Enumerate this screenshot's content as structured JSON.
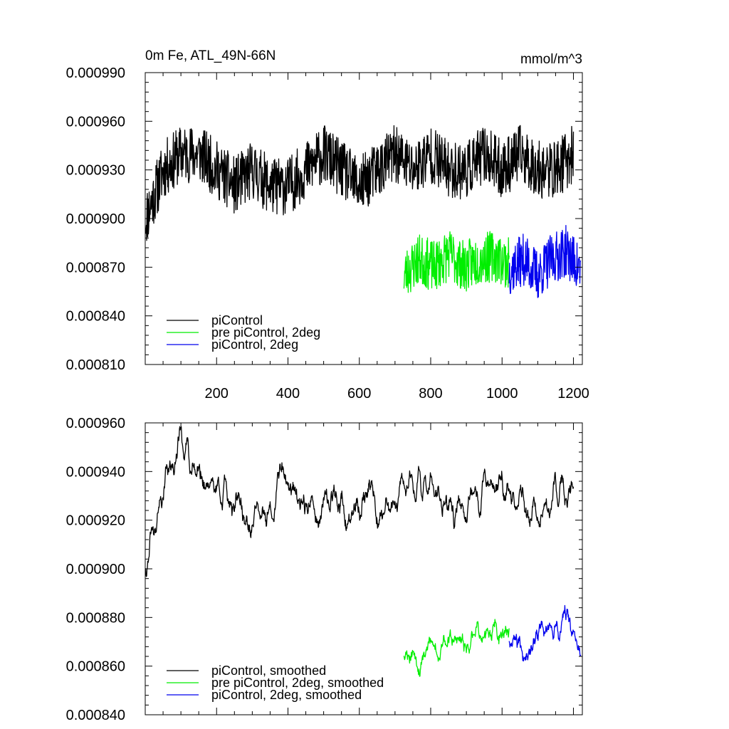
{
  "chart_data": [
    {
      "type": "line",
      "title": "0m Fe, ATL_49N-66N",
      "units": "mmol/m^3",
      "xlim": [
        0,
        1225
      ],
      "ylim": [
        0.00081,
        0.00099
      ],
      "xticks": [
        200,
        400,
        600,
        800,
        1000,
        1200
      ],
      "xtick_labels": [
        "200",
        "400",
        "600",
        "800",
        "1000",
        "1200"
      ],
      "yticks": [
        0.00081,
        0.00084,
        0.00087,
        0.0009,
        0.00093,
        0.00096,
        0.00099
      ],
      "ytick_labels": [
        "0.000810",
        "0.000840",
        "0.000870",
        "0.000900",
        "0.000930",
        "0.000960",
        "0.000990"
      ],
      "legend_position": "bottom-left",
      "series": [
        {
          "name": "piControl",
          "color": "#000000",
          "x": [
            1,
            1200
          ],
          "base": [
            0.0009,
            0.00093,
            0.00094,
            0.00094,
            0.00093,
            0.00092,
            0.00093,
            0.00092,
            0.00092,
            0.00093,
            0.00094,
            0.00093,
            0.00092,
            0.00093,
            0.00094,
            0.00093,
            0.00094,
            0.00093,
            0.00093,
            0.00094,
            0.00093,
            0.00094,
            0.00093,
            0.00093,
            0.00094
          ],
          "amplitude": 1.8e-05,
          "seed": 11
        },
        {
          "name": "pre piControl, 2deg",
          "color": "#00ee00",
          "x": [
            725,
            1020
          ],
          "base": [
            0.000865,
            0.000875,
            0.00087,
            0.000878,
            0.00087,
            0.000875,
            0.000877,
            0.000872
          ],
          "amplitude": 1.6e-05,
          "seed": 23
        },
        {
          "name": "piControl, 2deg",
          "color": "#0000ee",
          "x": [
            1020,
            1220
          ],
          "base": [
            0.000868,
            0.000875,
            0.000865,
            0.000875,
            0.00088,
            0.000868
          ],
          "amplitude": 1.6e-05,
          "seed": 37
        }
      ]
    },
    {
      "type": "line",
      "title": "",
      "units": "",
      "xlim": [
        0,
        1225
      ],
      "ylim": [
        0.00084,
        0.00096
      ],
      "xticks": [
        200,
        400,
        600,
        800,
        1000,
        1200
      ],
      "xtick_labels": [],
      "yticks": [
        0.00084,
        0.00086,
        0.00088,
        0.0009,
        0.00092,
        0.00094,
        0.00096
      ],
      "ytick_labels": [
        "0.000840",
        "0.000860",
        "0.000880",
        "0.000900",
        "0.000920",
        "0.000940",
        "0.000960"
      ],
      "legend_position": "bottom-left",
      "series": [
        {
          "name": "piControl, smoothed",
          "color": "#000000",
          "x": [
            1,
            1200
          ],
          "base": [
            0.000898,
            0.00093,
            0.000955,
            0.00094,
            0.000935,
            0.00093,
            0.00092,
            0.00092,
            0.00094,
            0.00093,
            0.00092,
            0.00093,
            0.00092,
            0.00093,
            0.00092,
            0.00093,
            0.00094,
            0.00093,
            0.00092,
            0.00093,
            0.00094,
            0.00093,
            0.000925,
            0.00092,
            0.00093,
            0.000935
          ],
          "amplitude": 9e-06,
          "seed": 41
        },
        {
          "name": "pre piControl, 2deg, smoothed",
          "color": "#00ee00",
          "x": [
            725,
            1020
          ],
          "base": [
            0.00087,
            0.000865,
            0.000868,
            0.00087,
            0.000868,
            0.000872,
            0.000875,
            0.000872
          ],
          "amplitude": 7.5e-06,
          "seed": 53
        },
        {
          "name": "piControl, 2deg, smoothed",
          "color": "#0000ee",
          "x": [
            1020,
            1220
          ],
          "base": [
            0.000875,
            0.00087,
            0.00087,
            0.000875,
            0.000878,
            0.00087
          ],
          "amplitude": 7.5e-06,
          "seed": 67
        }
      ]
    }
  ]
}
